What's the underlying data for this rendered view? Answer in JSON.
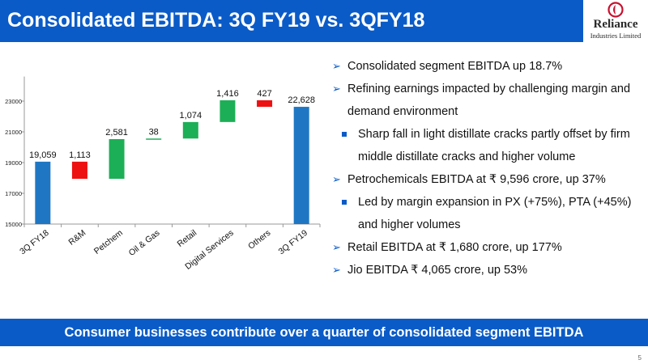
{
  "header": {
    "title": "Consolidated EBITDA: 3Q FY19 vs. 3QFY18"
  },
  "logo": {
    "name": "Reliance",
    "subtitle": "Industries Limited"
  },
  "chart_data": {
    "type": "bar",
    "subtype": "waterfall",
    "categories": [
      "3Q FY18",
      "R&M",
      "Petchem",
      "Oil & Gas",
      "Retail",
      "Digital Services",
      "Others",
      "3Q FY19"
    ],
    "values": [
      19059,
      -1113,
      2581,
      38,
      1074,
      1416,
      -427,
      22628
    ],
    "data_labels": [
      "19,059",
      "1,113",
      "2,581",
      "38",
      "1,074",
      "1,416",
      "427",
      "22,628"
    ],
    "bar_kinds": [
      "total",
      "decrease",
      "increase",
      "increase",
      "increase",
      "increase",
      "decrease",
      "total"
    ],
    "y_ticks": [
      15000,
      17000,
      19000,
      21000,
      23000
    ],
    "ylim": [
      15000,
      24600
    ],
    "colors": {
      "total": "#1f77c4",
      "increase": "#1daf57",
      "decrease": "#ee1111",
      "axis": "#999999",
      "text": "#111111"
    },
    "grid": false,
    "legend": "none",
    "title": "",
    "xlabel": "",
    "ylabel": ""
  },
  "bullets": [
    {
      "level": 1,
      "text": "Consolidated segment EBITDA up 18.7%"
    },
    {
      "level": 1,
      "text": "Refining earnings impacted by challenging margin and demand environment"
    },
    {
      "level": 2,
      "text": "Sharp fall in light distillate cracks partly offset by firm middle distillate cracks and higher volume"
    },
    {
      "level": 1,
      "text": "Petrochemicals EBITDA  at ₹ 9,596 crore, up 37%"
    },
    {
      "level": 2,
      "text": "Led by margin expansion in PX (+75%), PTA (+45%) and higher volumes"
    },
    {
      "level": 1,
      "text": "Retail EBITDA at ₹ 1,680 crore, up 177%"
    },
    {
      "level": 1,
      "text": "Jio EBITDA ₹ 4,065 crore, up 53%"
    }
  ],
  "bullet_icons": {
    "level1": "arrow-bullet-icon",
    "level2": "square-bullet-icon"
  },
  "footer": {
    "text": "Consumer businesses contribute over a quarter of consolidated segment EBITDA"
  },
  "page_number": "5"
}
